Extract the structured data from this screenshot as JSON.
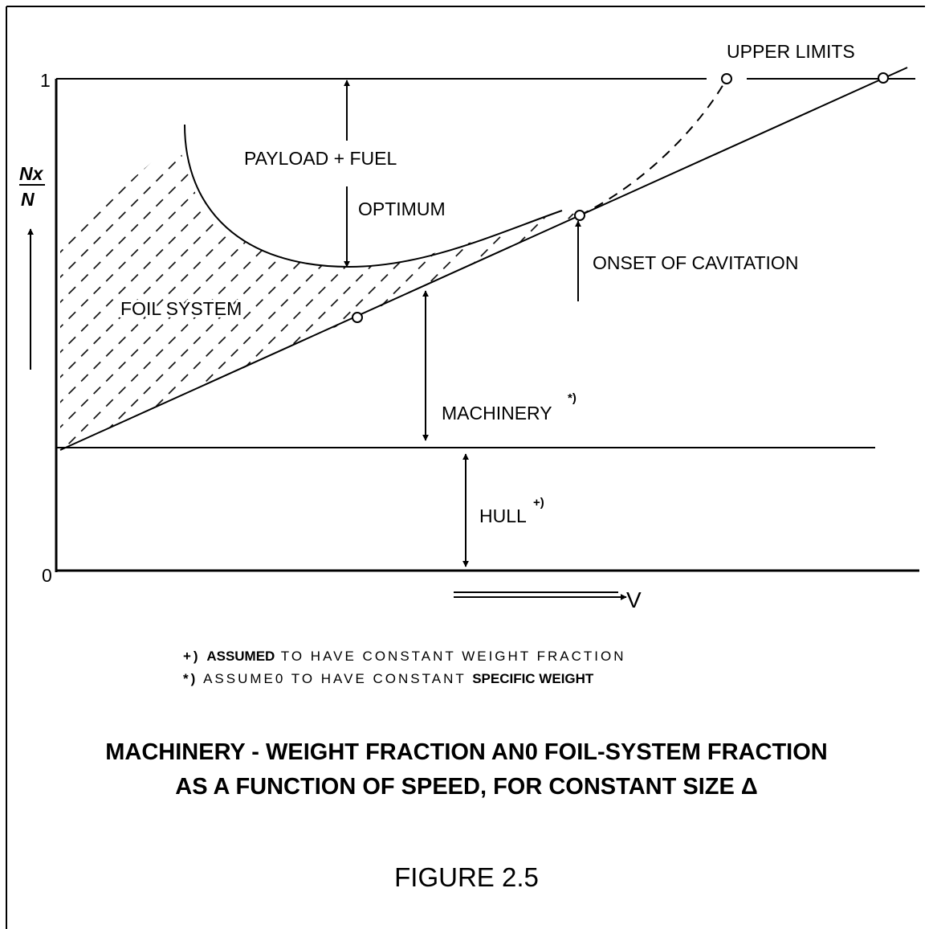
{
  "axis": {
    "top_label": "1",
    "bottom_label": "0",
    "y_label_numerator": "Nx",
    "y_label_denominator": "N",
    "x_label": "V"
  },
  "labels": {
    "upper_limits": "UPPER LIMITS",
    "payload": "PAYLOAD + FUEL",
    "optimum": "OPTIMUM",
    "onset": "ONSET OF CAVITATION",
    "foil": "FOIL SYSTEM",
    "machinery": "MACHINERY",
    "machinery_mark": "*)",
    "hull": "HULL",
    "hull_mark": "+)"
  },
  "notes": [
    {
      "mark": "+)",
      "bold": "ASSUMED",
      "text": "TO HAVE CONSTANT WEIGHT FRACTION"
    },
    {
      "mark": "*)",
      "text": "ASSUME0 TO HAVE CONSTANT",
      "bold": "SPECIFIC WEIGHT"
    }
  ],
  "caption": {
    "line1": "MACHINERY - WEIGHT FRACTION AN0 FOIL-SYSTEM FRACTION",
    "line2": "AS A FUNCTION OF SPEED, FOR CONSTANT SIZE Δ",
    "figure": "FIGURE 2.5"
  }
}
